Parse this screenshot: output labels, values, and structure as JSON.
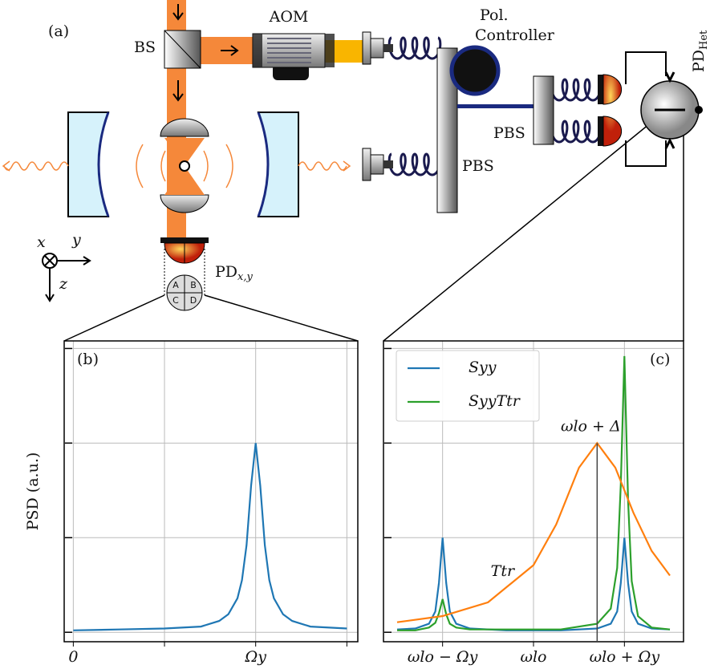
{
  "diagram": {
    "panel_label": "(a)",
    "bs": "BS",
    "aom": "AOM",
    "pol_controller": [
      "Pol.",
      "Controller"
    ],
    "pbs": [
      "PBS",
      "PBS"
    ],
    "pd_het": {
      "main": "PD",
      "sub": "Het"
    },
    "pd_xy": {
      "main": "PD",
      "sub": "x,y"
    },
    "axes": [
      "x",
      "y",
      "z"
    ],
    "quadrants": [
      "A",
      "B",
      "C",
      "D"
    ]
  },
  "chart_data": [
    {
      "type": "line",
      "panel_label": "(b)",
      "y_label": "PSD (a.u.)",
      "x": [
        0,
        0.5,
        1,
        1.4,
        1.6,
        1.7,
        1.8,
        1.85,
        1.9,
        1.95,
        2,
        2.05,
        2.1,
        2.15,
        2.2,
        2.3,
        2.4,
        2.6,
        3
      ],
      "series": [
        {
          "color": "#1f77b4",
          "values": [
            0.02,
            0.03,
            0.04,
            0.06,
            0.12,
            0.19,
            0.36,
            0.55,
            0.92,
            1.55,
            2.0,
            1.55,
            0.92,
            0.55,
            0.36,
            0.19,
            0.12,
            0.06,
            0.04
          ]
        }
      ],
      "xlim": [
        -0.1,
        3.12
      ],
      "ylim": [
        -0.1,
        3.08
      ],
      "xticks": [
        0,
        {
          "value": 1,
          "label": null
        },
        {
          "value": 2,
          "label": "Ωy"
        },
        {
          "value": 3,
          "label": null
        }
      ],
      "yticks": [
        {
          "value": 0,
          "label": null
        },
        {
          "value": 1,
          "label": null
        },
        {
          "value": 2,
          "label": null
        },
        {
          "value": 3,
          "label": null
        }
      ],
      "grid": true
    },
    {
      "type": "line",
      "panel_label": "(c)",
      "series": [
        {
          "name": "Syy",
          "color": "#1f77b4",
          "x": [
            -1.5,
            -1.3,
            -1.15,
            -1.08,
            -1.04,
            -1,
            -0.96,
            -0.92,
            -0.85,
            -0.7,
            -0.3,
            0.3,
            0.7,
            0.85,
            0.92,
            0.96,
            1,
            1.04,
            1.08,
            1.15,
            1.3,
            1.5
          ],
          "values": [
            0.03,
            0.04,
            0.09,
            0.22,
            0.52,
            1.0,
            0.52,
            0.22,
            0.09,
            0.04,
            0.02,
            0.02,
            0.04,
            0.09,
            0.22,
            0.52,
            1.0,
            0.52,
            0.22,
            0.09,
            0.04,
            0.03
          ]
        },
        {
          "name": "SyyTtr",
          "color": "#2ca02c",
          "x": [
            -1.5,
            -1.3,
            -1.15,
            -1.08,
            -1.04,
            -1,
            -0.96,
            -0.92,
            -0.85,
            -0.7,
            -0.3,
            0.3,
            0.7,
            0.85,
            0.92,
            0.96,
            1,
            1.04,
            1.08,
            1.15,
            1.3,
            1.5
          ],
          "values": [
            0.02,
            0.02,
            0.05,
            0.1,
            0.2,
            0.35,
            0.19,
            0.09,
            0.05,
            0.03,
            0.03,
            0.03,
            0.09,
            0.25,
            0.68,
            1.56,
            2.92,
            1.39,
            0.54,
            0.17,
            0.05,
            0.03
          ]
        },
        {
          "label": "Ttr",
          "color": "#ff7f0e",
          "x": [
            -1.5,
            -1,
            -0.5,
            0,
            0.25,
            0.5,
            0.7,
            0.9,
            1.1,
            1.3,
            1.5
          ],
          "values": [
            0.106,
            0.171,
            0.316,
            0.71,
            1.14,
            1.74,
            2.0,
            1.74,
            1.26,
            0.86,
            0.6
          ]
        }
      ],
      "annotations": [
        {
          "text": "ωlo + Δ",
          "x": 0.7,
          "y": 2.0
        }
      ],
      "xlim": [
        -1.65,
        1.65
      ],
      "ylim": [
        -0.1,
        3.08
      ],
      "xticks": [
        {
          "value": -1,
          "label": "ωlo − Ωy"
        },
        {
          "value": 0,
          "label": "ωlo"
        },
        {
          "value": 1,
          "label": "ωlo + Ωy"
        }
      ],
      "yticks": [
        {
          "value": 0,
          "label": null
        },
        {
          "value": 1,
          "label": null
        },
        {
          "value": 2,
          "label": null
        },
        {
          "value": 3,
          "label": null
        }
      ],
      "grid": true,
      "legend": "upper left"
    }
  ]
}
